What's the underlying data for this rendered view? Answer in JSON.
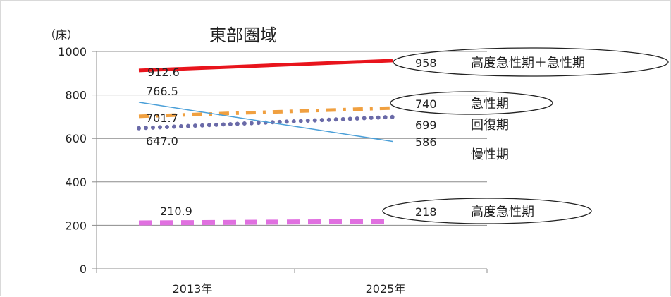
{
  "chart_data": {
    "type": "line",
    "title": "東部圏域",
    "y_unit_label": "（床）",
    "categories": [
      "2013年",
      "2025年"
    ],
    "ylim": [
      0,
      1000
    ],
    "yticks": [
      0,
      200,
      400,
      600,
      800,
      1000
    ],
    "grid": true,
    "series": [
      {
        "name": "高度急性期＋急性期",
        "values": [
          912.6,
          958
        ],
        "start_label": "912.6",
        "end_label": "958",
        "color": "#e8141c",
        "line_style": "solid-thick",
        "circled": true
      },
      {
        "name": "急性期",
        "values": [
          701.7,
          740
        ],
        "start_label": "701.7",
        "end_label": "740",
        "color": "#f0a040",
        "line_style": "dash-dot",
        "circled": true
      },
      {
        "name": "回復期",
        "values": [
          647.0,
          699
        ],
        "start_label": "647.0",
        "end_label": "699",
        "color": "#6a6aa8",
        "line_style": "dotted",
        "circled": false
      },
      {
        "name": "慢性期",
        "values": [
          766.5,
          586
        ],
        "start_label": "766.5",
        "end_label": "586",
        "color": "#4a9fd8",
        "line_style": "solid-thin",
        "circled": false
      },
      {
        "name": "高度急性期",
        "values": [
          210.9,
          218
        ],
        "start_label": "210.9",
        "end_label": "218",
        "color": "#e070e0",
        "line_style": "dashed-thick",
        "circled": true
      }
    ]
  }
}
